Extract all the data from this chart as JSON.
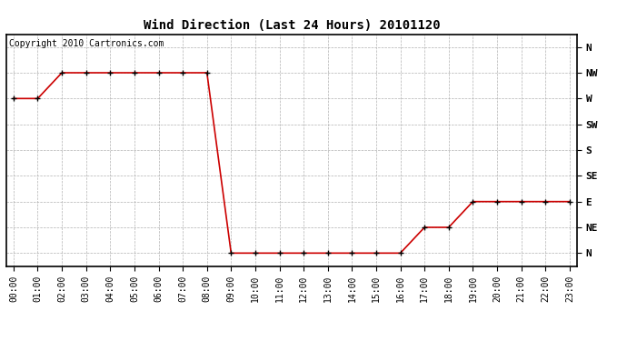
{
  "title": "Wind Direction (Last 24 Hours) 20101120",
  "copyright_text": "Copyright 2010 Cartronics.com",
  "line_color": "#cc0000",
  "bg_color": "#ffffff",
  "grid_color": "#aaaaaa",
  "marker": "+",
  "marker_size": 5,
  "marker_color": "#000000",
  "x_labels": [
    "00:00",
    "01:00",
    "02:00",
    "03:00",
    "04:00",
    "05:00",
    "06:00",
    "07:00",
    "08:00",
    "09:00",
    "10:00",
    "11:00",
    "12:00",
    "13:00",
    "14:00",
    "15:00",
    "16:00",
    "17:00",
    "18:00",
    "19:00",
    "20:00",
    "21:00",
    "22:00",
    "23:00"
  ],
  "y_labels": [
    "N",
    "NE",
    "E",
    "SE",
    "S",
    "SW",
    "W",
    "NW",
    "N"
  ],
  "y_values": [
    0,
    1,
    2,
    3,
    4,
    5,
    6,
    7,
    8
  ],
  "wind_data": {
    "hours": [
      0,
      1,
      2,
      3,
      4,
      5,
      6,
      7,
      8,
      9,
      10,
      11,
      12,
      13,
      14,
      15,
      16,
      17,
      18,
      19,
      20,
      21,
      22,
      23
    ],
    "directions": [
      6,
      6,
      7,
      7,
      7,
      7,
      7,
      7,
      7,
      0,
      0,
      0,
      0,
      0,
      0,
      0,
      0,
      1,
      1,
      2,
      2,
      2,
      2,
      2
    ]
  },
  "title_fontsize": 10,
  "tick_fontsize": 7,
  "ytick_fontsize": 8,
  "copyright_fontsize": 7
}
